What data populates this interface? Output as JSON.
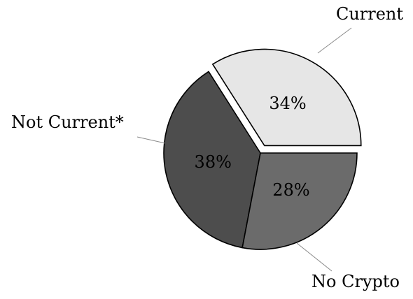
{
  "chart_data": {
    "type": "pie",
    "title": "",
    "exploded": "Current",
    "slices": [
      {
        "label": "Current",
        "value": 34,
        "value_label": "34%",
        "color": "#e6e6e6"
      },
      {
        "label": "No Crypto",
        "value": 38,
        "value_label": "38%",
        "color": "#4d4d4d"
      },
      {
        "label": "Not Current*",
        "value": 28,
        "value_label": "28%",
        "color": "#6b6b6b"
      }
    ]
  }
}
